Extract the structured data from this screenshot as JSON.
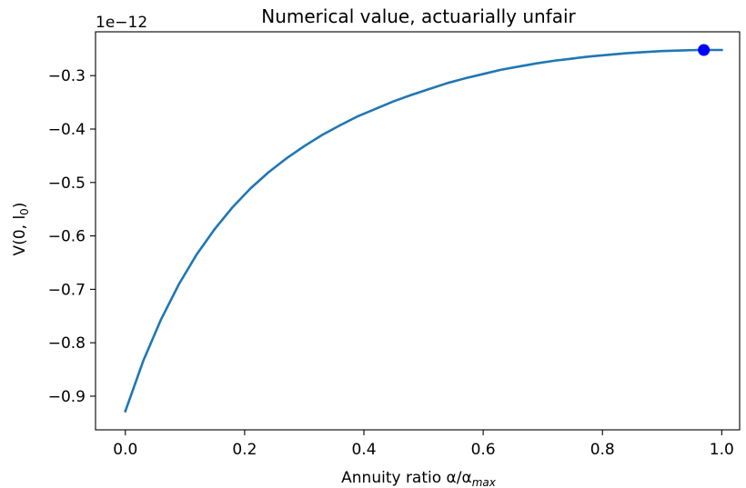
{
  "chart_data": {
    "type": "line",
    "title": "Numerical value, actuarially unfair",
    "xlabel": {
      "prefix": "Annuity ratio α/α",
      "sub": "max"
    },
    "ylabel": {
      "prefix": "V(0, l",
      "sub": "0",
      "suffix": ")"
    },
    "y_offset_label": "1e−12",
    "xlim": [
      -0.05,
      1.03
    ],
    "ylim": [
      -0.963,
      -0.218
    ],
    "x_ticks": [
      0.0,
      0.2,
      0.4,
      0.6,
      0.8,
      1.0
    ],
    "x_tick_labels": [
      "0.0",
      "0.2",
      "0.4",
      "0.6",
      "0.8",
      "1.0"
    ],
    "y_ticks": [
      -0.9,
      -0.8,
      -0.7,
      -0.6,
      -0.5,
      -0.4,
      -0.3
    ],
    "y_tick_labels": [
      "−0.9",
      "−0.8",
      "−0.7",
      "−0.6",
      "−0.5",
      "−0.4",
      "−0.3"
    ],
    "grid": false,
    "series": [
      {
        "color": "#1f77b4",
        "x": [
          0.0,
          0.03,
          0.06,
          0.09,
          0.12,
          0.15,
          0.18,
          0.21,
          0.24,
          0.27,
          0.3,
          0.33,
          0.36,
          0.39,
          0.42,
          0.45,
          0.48,
          0.51,
          0.54,
          0.57,
          0.6,
          0.63,
          0.66,
          0.69,
          0.72,
          0.75,
          0.78,
          0.81,
          0.84,
          0.87,
          0.9,
          0.93,
          0.96,
          0.97,
          0.99,
          1.0
        ],
        "y": [
          -0.928,
          -0.834,
          -0.756,
          -0.69,
          -0.634,
          -0.587,
          -0.546,
          -0.511,
          -0.481,
          -0.455,
          -0.432,
          -0.411,
          -0.393,
          -0.376,
          -0.362,
          -0.348,
          -0.336,
          -0.325,
          -0.314,
          -0.305,
          -0.297,
          -0.289,
          -0.283,
          -0.277,
          -0.272,
          -0.268,
          -0.264,
          -0.261,
          -0.258,
          -0.256,
          -0.254,
          -0.253,
          -0.252,
          -0.252,
          -0.252,
          -0.252
        ]
      }
    ],
    "marker": {
      "x": 0.97,
      "y": -0.252,
      "color": "#0000ff"
    }
  }
}
